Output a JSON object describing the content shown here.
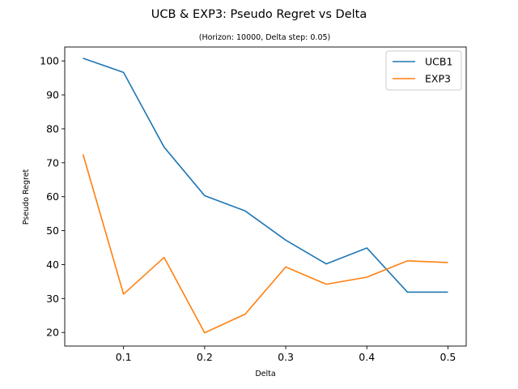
{
  "chart_data": {
    "type": "line",
    "title": "UCB & EXP3: Pseudo Regret vs Delta",
    "subtitle": "(Horizon: 10000, Delta step: 0.05)",
    "xlabel": "Delta",
    "ylabel": "Pseudo Regret",
    "x": [
      0.05,
      0.1,
      0.15,
      0.2,
      0.25,
      0.3,
      0.35,
      0.4,
      0.45,
      0.5
    ],
    "xlim": [
      0.0275,
      0.5225
    ],
    "ylim": [
      16,
      104.1
    ],
    "x_ticks": [
      0.1,
      0.2,
      0.3,
      0.4,
      0.5
    ],
    "x_tick_labels": [
      "0.1",
      "0.2",
      "0.3",
      "0.4",
      "0.5"
    ],
    "y_ticks": [
      20,
      30,
      40,
      50,
      60,
      70,
      80,
      90,
      100
    ],
    "y_tick_labels": [
      "20",
      "30",
      "40",
      "50",
      "60",
      "70",
      "80",
      "90",
      "100"
    ],
    "grid": false,
    "legend_position": "top-right",
    "series": [
      {
        "name": "UCB1",
        "color": "#1f77b4",
        "values": [
          100.8,
          96.6,
          74.6,
          60.3,
          55.8,
          47.2,
          40.2,
          44.9,
          31.9,
          31.9
        ]
      },
      {
        "name": "EXP3",
        "color": "#ff7f0e",
        "values": [
          72.5,
          31.3,
          42.1,
          19.9,
          25.4,
          39.3,
          34.2,
          36.3,
          41.1,
          40.6
        ]
      }
    ]
  }
}
